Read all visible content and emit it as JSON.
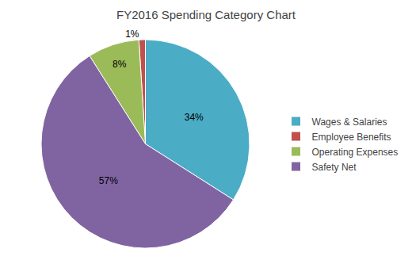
{
  "chart_data": {
    "type": "pie",
    "title": "FY2016 Spending Category Chart",
    "categories": [
      "Wages & Salaries",
      "Employee Benefits",
      "Operating Expenses",
      "Safety Net"
    ],
    "values": [
      34,
      1,
      8,
      57
    ],
    "value_labels": [
      "34%",
      "1%",
      "8%",
      "57%"
    ],
    "colors": [
      "#4BACC6",
      "#C0504D",
      "#9BBB59",
      "#8064A2"
    ],
    "data_labels": true,
    "legend": "right"
  }
}
